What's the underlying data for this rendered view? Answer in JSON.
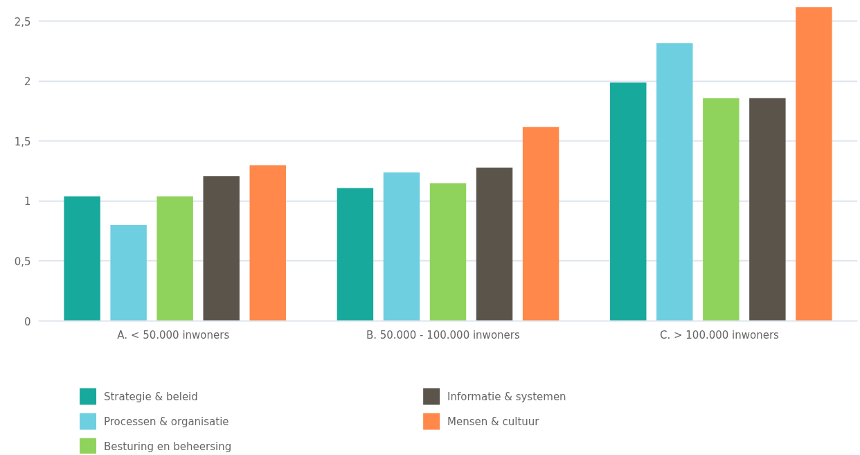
{
  "chart_data": {
    "type": "bar",
    "categories": [
      "A.  < 50.000 inwoners",
      "B.  50.000  -  100.000 inwoners",
      "C.  > 100.000 inwoners"
    ],
    "series": [
      {
        "name": "Strategie & beleid",
        "color": "#17aa9c",
        "values": [
          1.04,
          1.11,
          1.99
        ]
      },
      {
        "name": "Processen & organisatie",
        "color": "#6dcfe0",
        "values": [
          0.8,
          1.24,
          2.32
        ]
      },
      {
        "name": "Besturing en beheersing",
        "color": "#8fd35c",
        "values": [
          1.04,
          1.15,
          1.86
        ]
      },
      {
        "name": "Informatie & systemen",
        "color": "#5a544b",
        "values": [
          1.21,
          1.28,
          1.86
        ]
      },
      {
        "name": "Mensen & cultuur",
        "color": "#ff884a",
        "values": [
          1.3,
          1.62,
          2.62
        ]
      }
    ],
    "ylim": [
      0,
      2.63
    ],
    "yticks": [
      0,
      {
        "value": 0.5,
        "label": "0,5"
      },
      1,
      {
        "value": 1.5,
        "label": "1,5"
      },
      2,
      {
        "value": 2.5,
        "label": "2,5"
      }
    ],
    "grid": "y",
    "legend": "bottom"
  }
}
